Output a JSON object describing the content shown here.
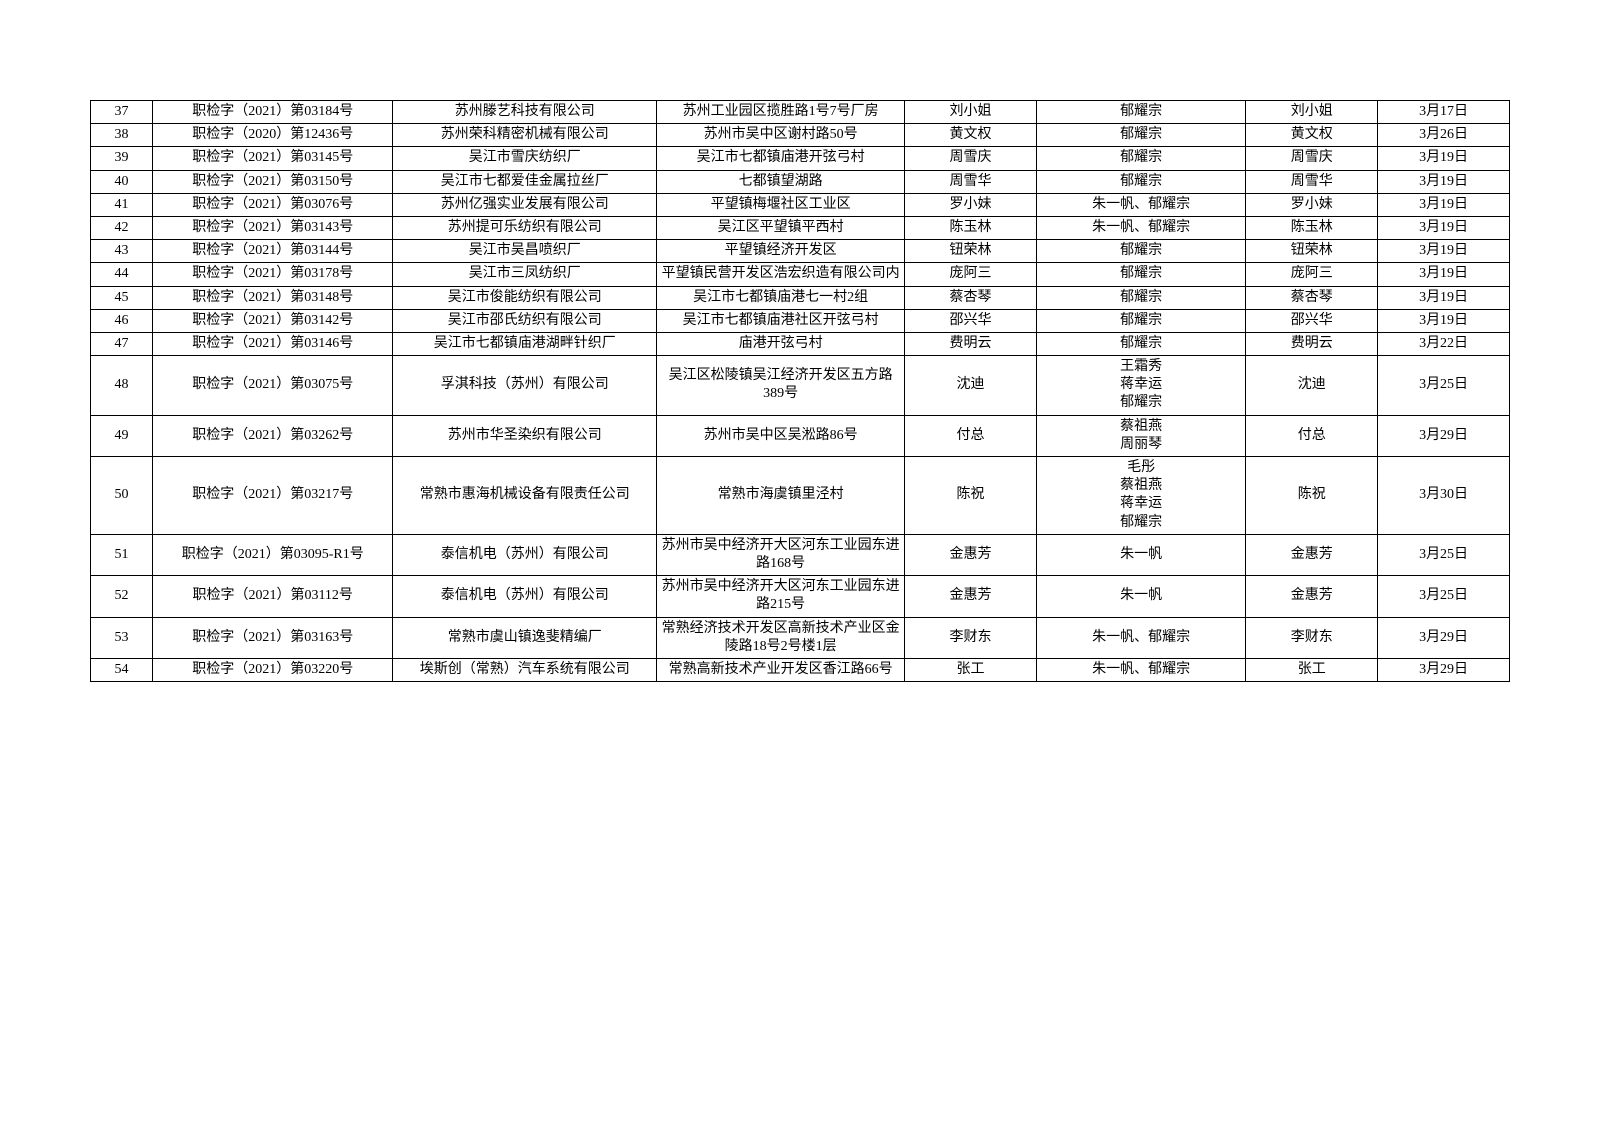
{
  "table": {
    "column_widths_percent": [
      4,
      15.5,
      17,
      16,
      8.5,
      13.5,
      8.5,
      8.5
    ],
    "border_color": "#000000",
    "background_color": "#ffffff",
    "font_size": 14,
    "font_family": "SimSun",
    "rows": [
      {
        "no": "37",
        "code": "职检字（2021）第03184号",
        "company": "苏州滕艺科技有限公司",
        "address": "苏州工业园区揽胜路1号7号厂房",
        "person1": "刘小姐",
        "inspector": "郁耀宗",
        "person2": "刘小姐",
        "date": "3月17日"
      },
      {
        "no": "38",
        "code": "职检字（2020）第12436号",
        "company": "苏州荣科精密机械有限公司",
        "address": "苏州市吴中区谢村路50号",
        "person1": "黄文权",
        "inspector": "郁耀宗",
        "person2": "黄文权",
        "date": "3月26日"
      },
      {
        "no": "39",
        "code": "职检字（2021）第03145号",
        "company": "吴江市雪庆纺织厂",
        "address": "吴江市七都镇庙港开弦弓村",
        "person1": "周雪庆",
        "inspector": "郁耀宗",
        "person2": "周雪庆",
        "date": "3月19日"
      },
      {
        "no": "40",
        "code": "职检字（2021）第03150号",
        "company": "吴江市七都爱佳金属拉丝厂",
        "address": "七都镇望湖路",
        "person1": "周雪华",
        "inspector": "郁耀宗",
        "person2": "周雪华",
        "date": "3月19日"
      },
      {
        "no": "41",
        "code": "职检字（2021）第03076号",
        "company": "苏州亿强实业发展有限公司",
        "address": "平望镇梅堰社区工业区",
        "person1": "罗小妹",
        "inspector": "朱一帆、郁耀宗",
        "person2": "罗小妹",
        "date": "3月19日"
      },
      {
        "no": "42",
        "code": "职检字（2021）第03143号",
        "company": "苏州提可乐纺织有限公司",
        "address": "吴江区平望镇平西村",
        "person1": "陈玉林",
        "inspector": "朱一帆、郁耀宗",
        "person2": "陈玉林",
        "date": "3月19日"
      },
      {
        "no": "43",
        "code": "职检字（2021）第03144号",
        "company": "吴江市吴昌喷织厂",
        "address": "平望镇经济开发区",
        "person1": "钮荣林",
        "inspector": "郁耀宗",
        "person2": "钮荣林",
        "date": "3月19日"
      },
      {
        "no": "44",
        "code": "职检字（2021）第03178号",
        "company": "吴江市三凤纺织厂",
        "address": "平望镇民营开发区浩宏织造有限公司内",
        "person1": "庞阿三",
        "inspector": "郁耀宗",
        "person2": "庞阿三",
        "date": "3月19日"
      },
      {
        "no": "45",
        "code": "职检字（2021）第03148号",
        "company": "吴江市俊能纺织有限公司",
        "address": "吴江市七都镇庙港七一村2组",
        "person1": "蔡杏琴",
        "inspector": "郁耀宗",
        "person2": "蔡杏琴",
        "date": "3月19日"
      },
      {
        "no": "46",
        "code": "职检字（2021）第03142号",
        "company": "吴江市邵氏纺织有限公司",
        "address": "吴江市七都镇庙港社区开弦弓村",
        "person1": "邵兴华",
        "inspector": "郁耀宗",
        "person2": "邵兴华",
        "date": "3月19日"
      },
      {
        "no": "47",
        "code": "职检字（2021）第03146号",
        "company": "吴江市七都镇庙港湖畔针织厂",
        "address": "庙港开弦弓村",
        "person1": "费明云",
        "inspector": "郁耀宗",
        "person2": "费明云",
        "date": "3月22日"
      },
      {
        "no": "48",
        "code": "职检字（2021）第03075号",
        "company": "孚淇科技（苏州）有限公司",
        "address": "吴江区松陵镇吴江经济开发区五方路389号",
        "person1": "沈迪",
        "inspector": "王霜秀\n蒋幸运\n郁耀宗",
        "person2": "沈迪",
        "date": "3月25日"
      },
      {
        "no": "49",
        "code": "职检字（2021）第03262号",
        "company": "苏州市华圣染织有限公司",
        "address": "苏州市吴中区吴淞路86号",
        "person1": "付总",
        "inspector": "蔡祖燕\n周丽琴",
        "person2": "付总",
        "date": "3月29日"
      },
      {
        "no": "50",
        "code": "职检字（2021）第03217号",
        "company": "常熟市惠海机械设备有限责任公司",
        "address": "常熟市海虞镇里泾村",
        "person1": "陈祝",
        "inspector": "毛彤\n蔡祖燕\n蒋幸运\n郁耀宗",
        "person2": "陈祝",
        "date": "3月30日"
      },
      {
        "no": "51",
        "code": "职检字（2021）第03095-R1号",
        "company": "泰信机电（苏州）有限公司",
        "address": "苏州市吴中经济开大区河东工业园东进路168号",
        "person1": "金惠芳",
        "inspector": "朱一帆",
        "person2": "金惠芳",
        "date": "3月25日"
      },
      {
        "no": "52",
        "code": "职检字（2021）第03112号",
        "company": "泰信机电（苏州）有限公司",
        "address": "苏州市吴中经济开大区河东工业园东进路215号",
        "person1": "金惠芳",
        "inspector": "朱一帆",
        "person2": "金惠芳",
        "date": "3月25日"
      },
      {
        "no": "53",
        "code": "职检字（2021）第03163号",
        "company": "常熟市虞山镇逸斐精编厂",
        "address": "常熟经济技术开发区高新技术产业区金陵路18号2号楼1层",
        "person1": "李财东",
        "inspector": "朱一帆、郁耀宗",
        "person2": "李财东",
        "date": "3月29日"
      },
      {
        "no": "54",
        "code": "职检字（2021）第03220号",
        "company": "埃斯创（常熟）汽车系统有限公司",
        "address": "常熟高新技术产业开发区香江路66号",
        "person1": "张工",
        "inspector": "朱一帆、郁耀宗",
        "person2": "张工",
        "date": "3月29日"
      }
    ]
  }
}
